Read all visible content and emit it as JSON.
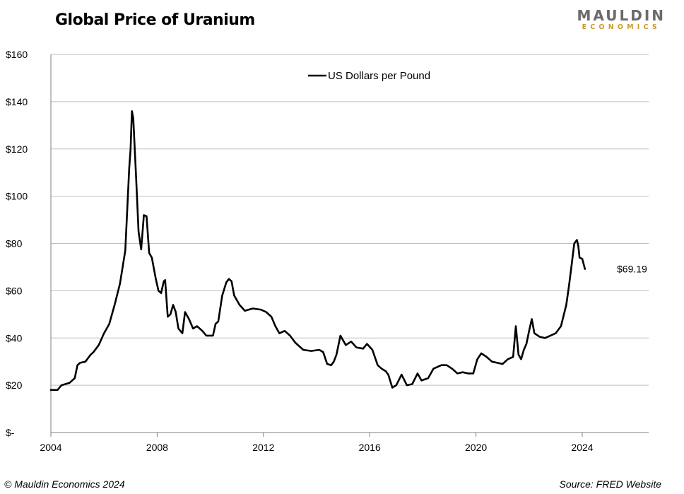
{
  "title": "Global Price of Uranium",
  "logo": {
    "main": "MAULDIN",
    "sub": "ECONOMICS"
  },
  "footer": {
    "left": "© Mauldin Economics 2024",
    "right": "Source: FRED Website"
  },
  "colors": {
    "line": "#000000",
    "grid": "#bfbfbf",
    "logo_gold": "#c89b2c",
    "logo_gray": "#6b6b6b"
  },
  "chart_data": {
    "type": "line",
    "title": "Global Price of Uranium",
    "xlabel": "",
    "ylabel": "",
    "xlim": [
      2004,
      2026.5
    ],
    "ylim": [
      0,
      160
    ],
    "x_ticks": [
      2004,
      2008,
      2012,
      2016,
      2020,
      2024
    ],
    "x_tick_labels": [
      "2004",
      "2008",
      "2012",
      "2016",
      "2020",
      "2024"
    ],
    "y_ticks": [
      0,
      20,
      40,
      60,
      80,
      100,
      120,
      140,
      160
    ],
    "y_tick_labels": [
      "$-",
      "$20",
      "$40",
      "$60",
      "$80",
      "$100",
      "$120",
      "$140",
      "$160"
    ],
    "grid": "horizontal",
    "legend_position": "top-center",
    "annotation": "$69.19",
    "series": [
      {
        "name": "US Dollars per Pound",
        "x": [
          2004.0,
          2004.25,
          2004.4,
          2004.7,
          2004.9,
          2005.0,
          2005.1,
          2005.3,
          2005.5,
          2005.6,
          2005.8,
          2006.0,
          2006.2,
          2006.4,
          2006.6,
          2006.8,
          2006.95,
          2007.0,
          2007.05,
          2007.1,
          2007.2,
          2007.3,
          2007.4,
          2007.5,
          2007.6,
          2007.7,
          2007.8,
          2007.95,
          2008.05,
          2008.15,
          2008.25,
          2008.3,
          2008.4,
          2008.5,
          2008.6,
          2008.7,
          2008.8,
          2008.95,
          2009.05,
          2009.2,
          2009.35,
          2009.5,
          2009.7,
          2009.85,
          2010.0,
          2010.1,
          2010.2,
          2010.3,
          2010.45,
          2010.6,
          2010.7,
          2010.8,
          2010.9,
          2011.1,
          2011.3,
          2011.6,
          2011.9,
          2012.1,
          2012.3,
          2012.45,
          2012.6,
          2012.8,
          2013.0,
          2013.2,
          2013.5,
          2013.8,
          2014.1,
          2014.25,
          2014.4,
          2014.55,
          2014.65,
          2014.75,
          2014.9,
          2015.1,
          2015.3,
          2015.5,
          2015.75,
          2015.9,
          2016.1,
          2016.3,
          2016.45,
          2016.6,
          2016.7,
          2016.85,
          2017.0,
          2017.2,
          2017.4,
          2017.6,
          2017.8,
          2017.95,
          2018.2,
          2018.4,
          2018.7,
          2018.9,
          2019.1,
          2019.3,
          2019.5,
          2019.7,
          2019.9,
          2020.05,
          2020.2,
          2020.4,
          2020.6,
          2020.8,
          2021.0,
          2021.2,
          2021.4,
          2021.5,
          2021.6,
          2021.7,
          2021.8,
          2021.9,
          2022.0,
          2022.1,
          2022.2,
          2022.4,
          2022.6,
          2022.8,
          2023.0,
          2023.2,
          2023.4,
          2023.5,
          2023.6,
          2023.7,
          2023.8,
          2023.85,
          2023.9,
          2024.0,
          2024.1
        ],
        "values": [
          18,
          18,
          20,
          21,
          23,
          28.5,
          29.5,
          30,
          33,
          34,
          37,
          42,
          46,
          54,
          63,
          77,
          112,
          120,
          136,
          133,
          110,
          85,
          77.5,
          92,
          91.5,
          76,
          74,
          65,
          60,
          59,
          64,
          64.5,
          49,
          50,
          54,
          51,
          44,
          42,
          51,
          48,
          44,
          45,
          43,
          41,
          41,
          41,
          46,
          47,
          58,
          63.5,
          65,
          64,
          58,
          54,
          51.5,
          52.5,
          52,
          51,
          49,
          45,
          42,
          43,
          41,
          38,
          35,
          34.5,
          35,
          34,
          29,
          28.5,
          30,
          33,
          41,
          37,
          38.5,
          36,
          35.5,
          37.5,
          35,
          28.5,
          27,
          26,
          24.5,
          19,
          20,
          24.5,
          20,
          20.5,
          25,
          22,
          23,
          27,
          28.5,
          28.5,
          27,
          25,
          25.5,
          25,
          25,
          31,
          33.5,
          32,
          30,
          29.5,
          29,
          31,
          32,
          45,
          33,
          31,
          35,
          37.5,
          43,
          48,
          42,
          40.5,
          40,
          41,
          42,
          45,
          54,
          62,
          71,
          80,
          81.5,
          79,
          74,
          73.5,
          69.19
        ]
      }
    ]
  }
}
